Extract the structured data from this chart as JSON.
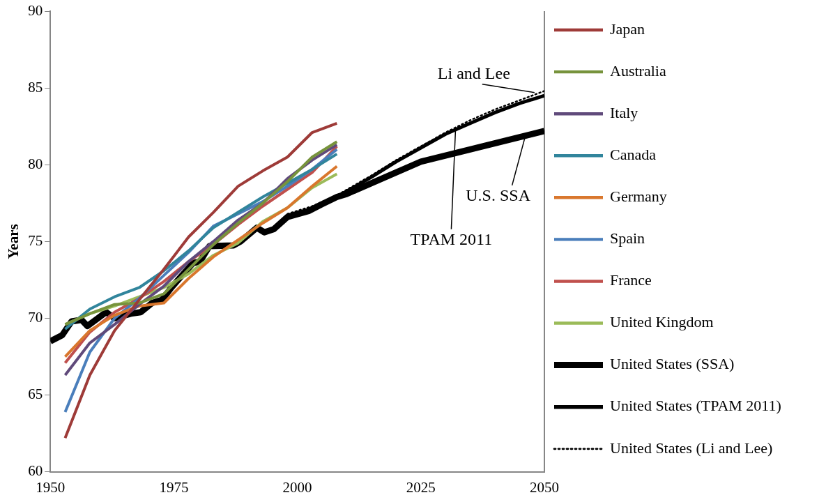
{
  "chart_data": {
    "type": "line",
    "ylabel": "Years",
    "xlim": [
      1950,
      2050
    ],
    "xticks": [
      1950,
      1975,
      2000,
      2025,
      2050
    ],
    "ylim": [
      60,
      90
    ],
    "yticks": [
      60,
      65,
      70,
      75,
      80,
      85,
      90
    ],
    "grid": false,
    "legend": "right",
    "marker": "none",
    "series": [
      {
        "name": "Japan",
        "color": "#9e3b38",
        "x": [
          1953,
          1958,
          1963,
          1968,
          1973,
          1978,
          1983,
          1988,
          1993,
          1998,
          2003,
          2008
        ],
        "values": [
          62.2,
          66.3,
          69.2,
          71.2,
          73.2,
          75.3,
          76.9,
          78.6,
          79.6,
          80.5,
          82.1,
          82.7
        ]
      },
      {
        "name": "Australia",
        "color": "#77933c",
        "x": [
          1953,
          1958,
          1963,
          1968,
          1973,
          1978,
          1983,
          1988,
          1993,
          1998,
          2003,
          2008
        ],
        "values": [
          69.6,
          70.3,
          70.9,
          71.0,
          71.6,
          73.2,
          74.8,
          76.2,
          77.5,
          78.9,
          80.5,
          81.5
        ]
      },
      {
        "name": "Italy",
        "color": "#604a7b",
        "x": [
          1953,
          1958,
          1963,
          1968,
          1973,
          1978,
          1983,
          1988,
          1993,
          1998,
          2003,
          2008
        ],
        "values": [
          66.3,
          68.4,
          69.6,
          70.9,
          72.1,
          73.7,
          75.0,
          76.4,
          77.5,
          79.1,
          80.3,
          81.3
        ]
      },
      {
        "name": "Canada",
        "color": "#31859c",
        "x": [
          1953,
          1958,
          1963,
          1968,
          1973,
          1978,
          1983,
          1988,
          1993,
          1998,
          2003,
          2008
        ],
        "values": [
          69.3,
          70.6,
          71.4,
          72.0,
          73.1,
          74.4,
          75.9,
          76.9,
          77.9,
          78.8,
          79.7,
          80.7
        ]
      },
      {
        "name": "Germany",
        "color": "#d9772d",
        "x": [
          1953,
          1958,
          1963,
          1968,
          1973,
          1978,
          1983,
          1988,
          1993,
          1998,
          2003,
          2008
        ],
        "values": [
          67.5,
          69.2,
          70.2,
          70.8,
          71.0,
          72.6,
          74.0,
          75.1,
          76.2,
          77.2,
          78.6,
          79.9
        ]
      },
      {
        "name": "Spain",
        "color": "#4a7ebb",
        "x": [
          1953,
          1958,
          1963,
          1968,
          1973,
          1978,
          1983,
          1988,
          1993,
          1998,
          2003,
          2008
        ],
        "values": [
          63.9,
          67.8,
          70.0,
          71.3,
          72.8,
          74.3,
          76.0,
          76.8,
          77.6,
          78.6,
          79.7,
          81.0
        ]
      },
      {
        "name": "France",
        "color": "#c0504d",
        "x": [
          1953,
          1958,
          1963,
          1968,
          1973,
          1978,
          1983,
          1988,
          1993,
          1998,
          2003,
          2008
        ],
        "values": [
          67.1,
          69.1,
          70.4,
          71.3,
          72.4,
          73.7,
          74.8,
          76.1,
          77.3,
          78.4,
          79.5,
          81.2
        ]
      },
      {
        "name": "United Kingdom",
        "color": "#9bbb59",
        "x": [
          1953,
          1958,
          1963,
          1968,
          1973,
          1978,
          1983,
          1988,
          1993,
          1998,
          2003,
          2008
        ],
        "values": [
          69.6,
          70.3,
          70.8,
          71.4,
          72.0,
          72.9,
          74.1,
          74.9,
          76.3,
          77.2,
          78.5,
          79.4
        ]
      },
      {
        "name": "United States (SSA)",
        "color": "#000000",
        "line_style": "solid",
        "x": [
          1950,
          1952.4,
          1954.3,
          1956.3,
          1957.5,
          1959.6,
          1961.3,
          1963,
          1966.3,
          1968.3,
          1970.6,
          1972.6,
          1974.5,
          1976.4,
          1978.9,
          1980.3,
          1982.2,
          1987.1,
          1988.5,
          1991.8,
          1993.3,
          1995.2,
          1998,
          2002.4,
          2004.8,
          2008,
          2010,
          2025,
          2050
        ],
        "values": [
          68.5,
          68.9,
          69.8,
          69.9,
          69.5,
          70.0,
          70.4,
          70.0,
          70.3,
          70.4,
          71.0,
          71.2,
          72.0,
          72.7,
          73.6,
          73.7,
          74.7,
          74.75,
          75.0,
          75.9,
          75.6,
          75.8,
          76.6,
          77.0,
          77.4,
          77.9,
          78.1,
          80.2,
          82.2
        ]
      },
      {
        "name": "United States (TPAM 2011)",
        "color": "#000000",
        "line_style": "solid",
        "x": [
          2008,
          2015,
          2020,
          2025,
          2030,
          2035,
          2040,
          2045,
          2050
        ],
        "values": [
          77.9,
          79.2,
          80.2,
          81.1,
          82.0,
          82.7,
          83.4,
          84.0,
          84.5
        ]
      },
      {
        "name": "United States (Li and Lee)",
        "color": "#000000",
        "line_style": "dotted",
        "x": [
          1998,
          2003,
          2008,
          2015,
          2020,
          2025,
          2030,
          2035,
          2040,
          2045,
          2050
        ],
        "values": [
          76.8,
          77.3,
          78.0,
          79.3,
          80.3,
          81.2,
          82.1,
          82.9,
          83.6,
          84.2,
          84.8
        ]
      }
    ],
    "annotations": [
      {
        "text": "Li and Lee",
        "x": 2048,
        "y": 84.7
      },
      {
        "text": "TPAM 2011",
        "x": 2032,
        "y": 82.2
      },
      {
        "text": "U.S. SSA",
        "x": 2046,
        "y": 81.7
      }
    ]
  }
}
